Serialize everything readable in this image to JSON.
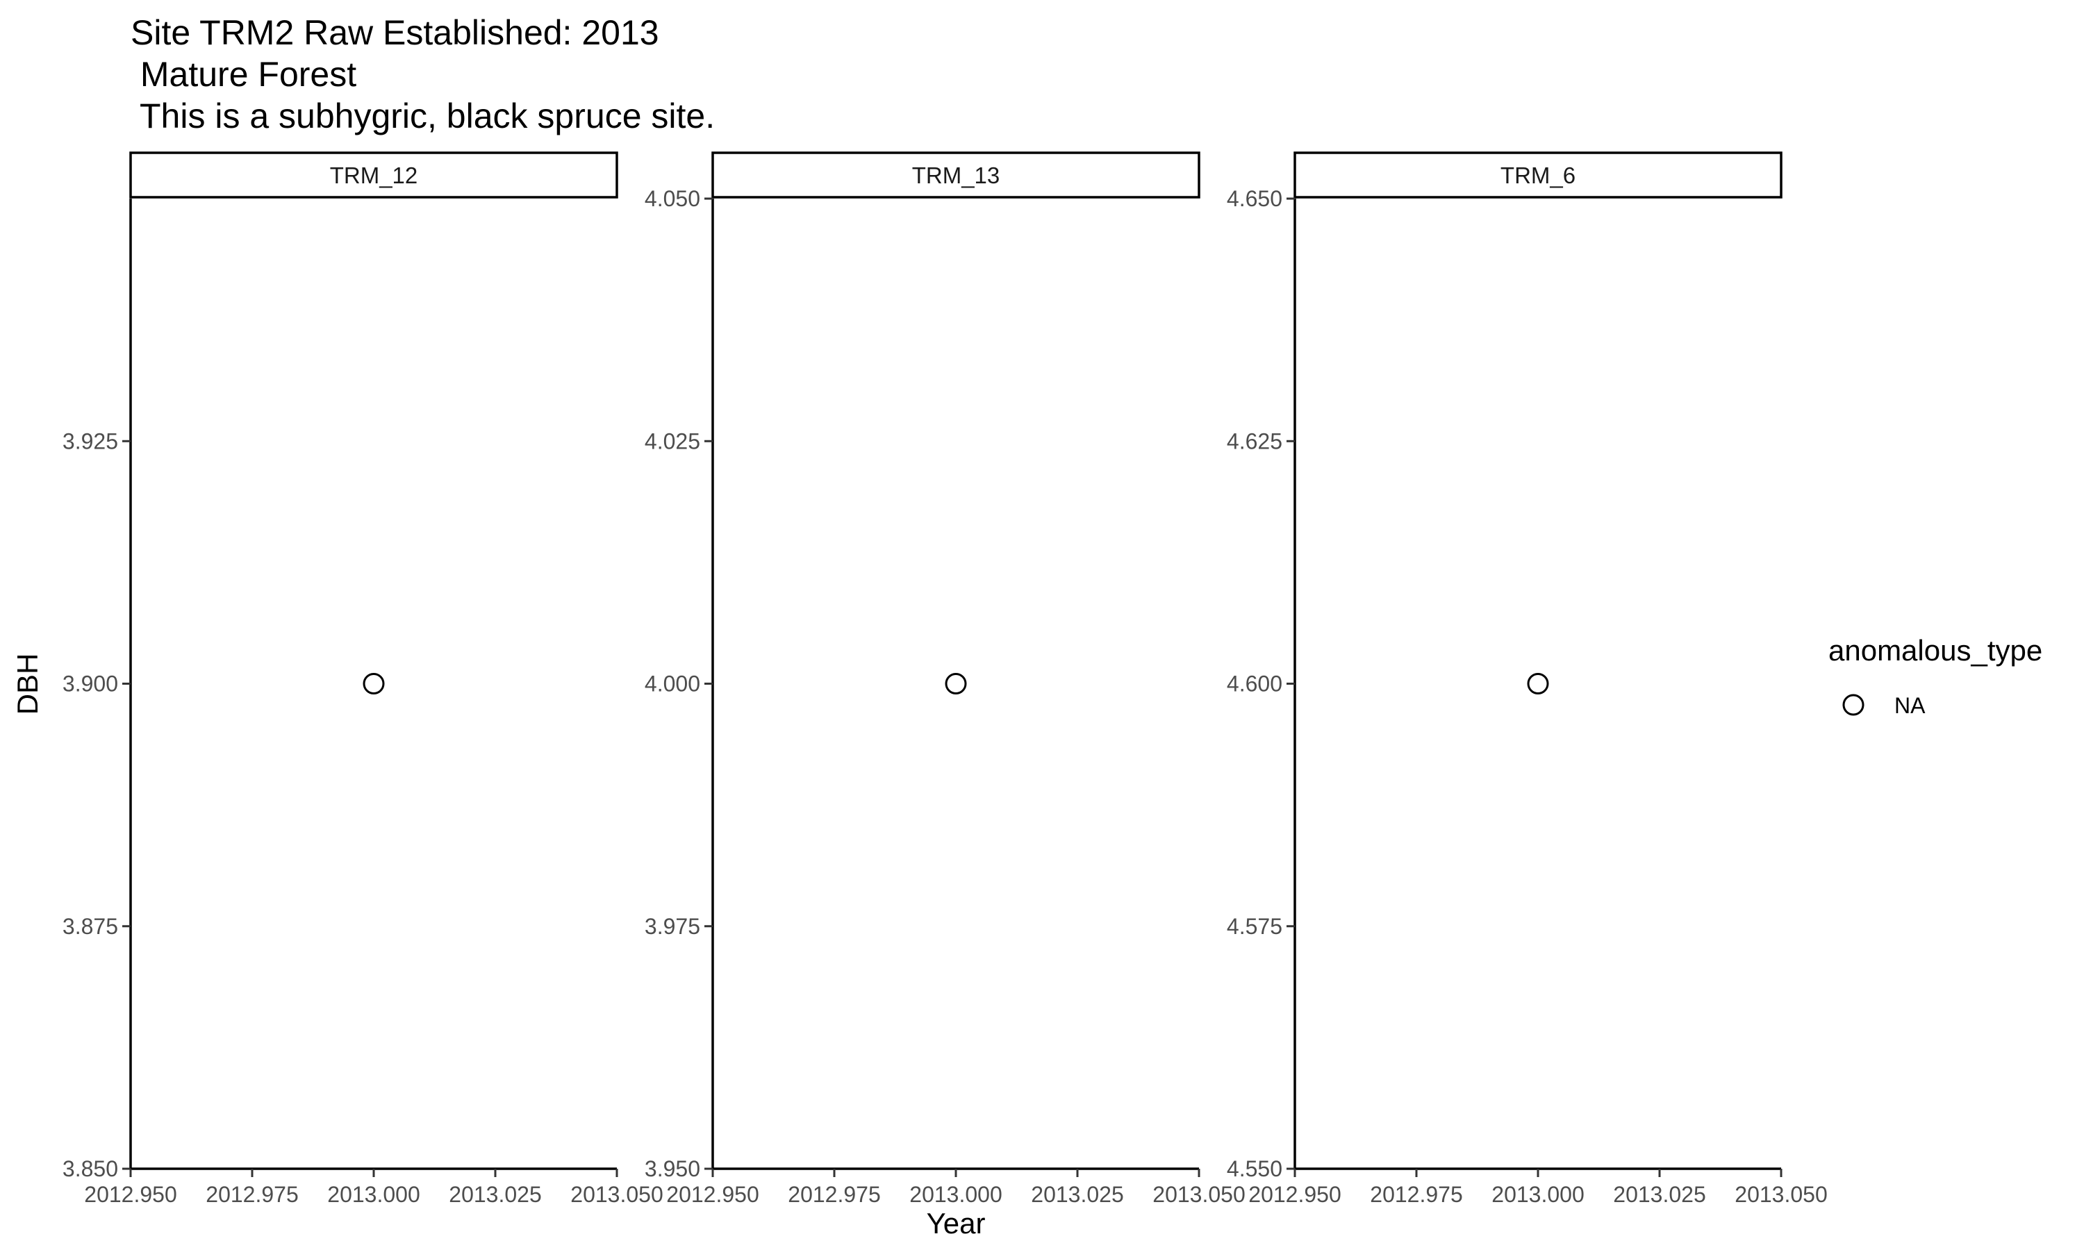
{
  "title": {
    "lines": [
      "Site TRM2 Raw Established: 2013",
      " Mature Forest",
      " This is a subhygric, black spruce site."
    ]
  },
  "chart_data": {
    "type": "scatter",
    "title": "Site TRM2 Raw Established: 2013\n Mature Forest\n This is a subhygric, black spruce site.",
    "xlabel": "Year",
    "ylabel": "DBH",
    "grid": false,
    "legend": {
      "title": "anomalous_type",
      "position": "right",
      "entries": [
        {
          "label": "NA",
          "marker": "open-circle"
        }
      ]
    },
    "facets": [
      {
        "name": "TRM_12",
        "xlim": [
          2012.95,
          2013.05
        ],
        "ylim": [
          3.85,
          3.95
        ],
        "x_ticks": [
          2012.95,
          2012.975,
          2013.0,
          2013.025,
          2013.05
        ],
        "x_tick_labels": [
          "2012.950",
          "2012.975",
          "2013.000",
          "2013.025",
          "2013.050"
        ],
        "y_ticks": [
          3.85,
          3.875,
          3.9,
          3.925
        ],
        "y_tick_labels": [
          "3.850",
          "3.875",
          "3.900",
          "3.925"
        ],
        "points": [
          {
            "x": 2013.0,
            "y": 3.9,
            "anomalous_type": "NA"
          }
        ]
      },
      {
        "name": "TRM_13",
        "xlim": [
          2012.95,
          2013.05
        ],
        "ylim": [
          3.95,
          4.05
        ],
        "x_ticks": [
          2012.95,
          2012.975,
          2013.0,
          2013.025,
          2013.05
        ],
        "x_tick_labels": [
          "2012.950",
          "2012.975",
          "2013.000",
          "2013.025",
          "2013.050"
        ],
        "y_ticks": [
          3.95,
          3.975,
          4.0,
          4.025,
          4.05
        ],
        "y_tick_labels": [
          "3.950",
          "3.975",
          "4.000",
          "4.025",
          "4.050"
        ],
        "points": [
          {
            "x": 2013.0,
            "y": 4.0,
            "anomalous_type": "NA"
          }
        ]
      },
      {
        "name": "TRM_6",
        "xlim": [
          2012.95,
          2013.05
        ],
        "ylim": [
          4.55,
          4.65
        ],
        "x_ticks": [
          2012.95,
          2012.975,
          2013.0,
          2013.025,
          2013.05
        ],
        "x_tick_labels": [
          "2012.950",
          "2012.975",
          "2013.000",
          "2013.025",
          "2013.050"
        ],
        "y_ticks": [
          4.55,
          4.575,
          4.6,
          4.625,
          4.65
        ],
        "y_tick_labels": [
          "4.550",
          "4.575",
          "4.600",
          "4.625",
          "4.650"
        ],
        "points": [
          {
            "x": 2013.0,
            "y": 4.6,
            "anomalous_type": "NA"
          }
        ]
      }
    ]
  }
}
